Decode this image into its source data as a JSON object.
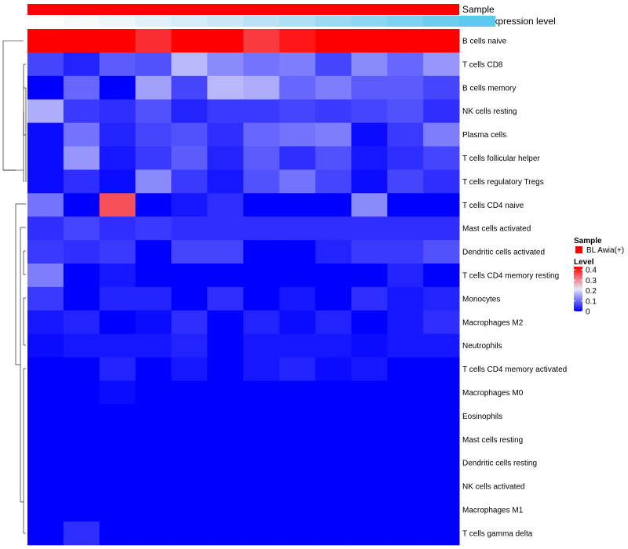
{
  "chart_data": {
    "type": "heatmap",
    "title": "",
    "annotations": {
      "sample_label": "Sample",
      "gene_label": "Gene expression level",
      "sample_color": "#ff0000",
      "gene_colors": [
        "#ffffff",
        "#f7f9fb",
        "#eef6fa",
        "#e2f1f9",
        "#d5edf7",
        "#c8e8f6",
        "#b9e3f5",
        "#aadff4",
        "#9bdaf3",
        "#8bd6f1",
        "#7cd2f0",
        "#6ccdef",
        "#5dc9ee"
      ]
    },
    "rows": [
      "B cells naive",
      "T cells CD8",
      "B cells memory",
      "NK cells resting",
      "Plasma cells",
      "T cells follicular helper",
      "T cells regulatory  Tregs",
      "T cells CD4 naive",
      "Mast cells activated",
      "Dendritic cells activated",
      "T cells CD4 memory resting",
      "Monocytes",
      "Macrophages M2",
      "Neutrophils",
      "T cells CD4 memory activated",
      "Macrophages M0",
      "Eosinophils",
      "Mast cells resting",
      "Dendritic cells resting",
      "NK cells activated",
      "Macrophages M1",
      "T cells gamma delta"
    ],
    "n_columns": 12,
    "values": [
      [
        0.46,
        0.43,
        0.45,
        0.36,
        0.4,
        0.44,
        0.35,
        0.38,
        0.42,
        0.46,
        0.46,
        0.45
      ],
      [
        0.06,
        0.03,
        0.08,
        0.07,
        0.16,
        0.12,
        0.1,
        0.11,
        0.06,
        0.12,
        0.09,
        0.13
      ],
      [
        0.0,
        0.09,
        0.0,
        0.14,
        0.06,
        0.16,
        0.15,
        0.09,
        0.11,
        0.08,
        0.08,
        0.06
      ],
      [
        0.15,
        0.05,
        0.04,
        0.07,
        0.03,
        0.05,
        0.05,
        0.06,
        0.05,
        0.06,
        0.07,
        0.04
      ],
      [
        0.01,
        0.1,
        0.03,
        0.06,
        0.07,
        0.04,
        0.09,
        0.1,
        0.11,
        0.01,
        0.05,
        0.11
      ],
      [
        0.01,
        0.13,
        0.02,
        0.05,
        0.08,
        0.03,
        0.08,
        0.04,
        0.07,
        0.02,
        0.04,
        0.06
      ],
      [
        0.01,
        0.04,
        0.01,
        0.12,
        0.05,
        0.02,
        0.07,
        0.1,
        0.06,
        0.01,
        0.06,
        0.04
      ],
      [
        0.1,
        0.0,
        0.33,
        0.0,
        0.02,
        0.04,
        0.0,
        0.0,
        0.0,
        0.12,
        0.0,
        0.0
      ],
      [
        0.04,
        0.06,
        0.04,
        0.05,
        0.04,
        0.04,
        0.04,
        0.04,
        0.04,
        0.04,
        0.04,
        0.04
      ],
      [
        0.05,
        0.04,
        0.05,
        0.0,
        0.06,
        0.06,
        0.0,
        0.0,
        0.03,
        0.05,
        0.05,
        0.07
      ],
      [
        0.11,
        0.0,
        0.02,
        0.0,
        0.0,
        0.0,
        0.0,
        0.0,
        0.0,
        0.0,
        0.03,
        0.0
      ],
      [
        0.05,
        0.0,
        0.03,
        0.03,
        0.0,
        0.04,
        0.0,
        0.02,
        0.0,
        0.04,
        0.02,
        0.03
      ],
      [
        0.02,
        0.03,
        0.0,
        0.01,
        0.04,
        0.0,
        0.03,
        0.01,
        0.03,
        0.0,
        0.02,
        0.04
      ],
      [
        0.01,
        0.02,
        0.02,
        0.02,
        0.03,
        0.0,
        0.02,
        0.02,
        0.02,
        0.01,
        0.02,
        0.02
      ],
      [
        0.0,
        0.0,
        0.03,
        0.0,
        0.02,
        0.0,
        0.02,
        0.03,
        0.01,
        0.02,
        0.0,
        0.0
      ],
      [
        0.0,
        0.0,
        0.01,
        0.0,
        0.0,
        0.0,
        0.0,
        0.0,
        0.0,
        0.0,
        0.0,
        0.0
      ],
      [
        0.0,
        0.0,
        0.0,
        0.0,
        0.0,
        0.0,
        0.0,
        0.0,
        0.0,
        0.0,
        0.0,
        0.0
      ],
      [
        0.0,
        0.0,
        0.0,
        0.0,
        0.0,
        0.0,
        0.0,
        0.0,
        0.0,
        0.0,
        0.0,
        0.0
      ],
      [
        0.0,
        0.0,
        0.0,
        0.0,
        0.0,
        0.0,
        0.0,
        0.0,
        0.0,
        0.0,
        0.0,
        0.0
      ],
      [
        0.0,
        0.0,
        0.0,
        0.0,
        0.0,
        0.0,
        0.0,
        0.0,
        0.0,
        0.0,
        0.0,
        0.0
      ],
      [
        0.0,
        0.0,
        0.0,
        0.0,
        0.0,
        0.0,
        0.0,
        0.0,
        0.0,
        0.0,
        0.0,
        0.0
      ],
      [
        0.0,
        0.04,
        0.0,
        0.0,
        0.0,
        0.0,
        0.0,
        0.0,
        0.0,
        0.0,
        0.0,
        0.0
      ]
    ],
    "color_scale": {
      "min": 0,
      "mid": 0.2,
      "max": 0.4,
      "low_color": "#0000ff",
      "mid_color": "#e6e6fa",
      "high_color": "#ff0000"
    },
    "legend": {
      "sample_title": "Sample",
      "sample_entry": "BL Awia(+)",
      "level_title": "Level",
      "level_ticks": [
        "0.4",
        "0.3",
        "0.2",
        "0.1",
        "0"
      ]
    }
  }
}
